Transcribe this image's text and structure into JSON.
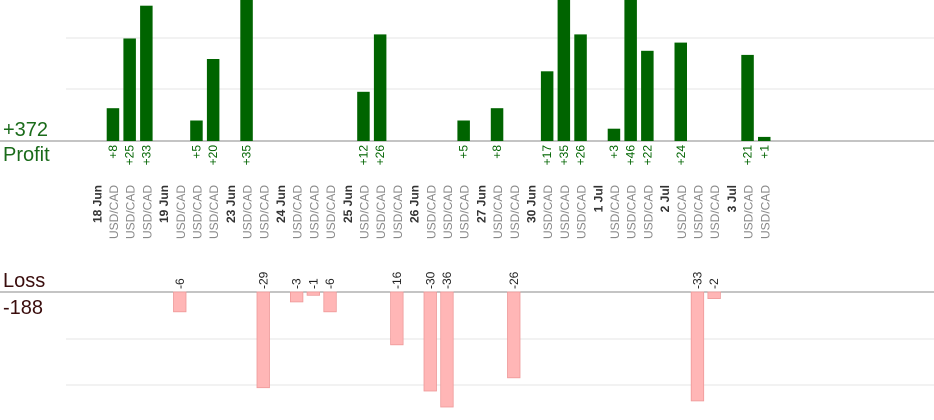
{
  "summary": {
    "profit_total": "+372",
    "profit_label": "Profit",
    "loss_label": "Loss",
    "loss_total": "-188"
  },
  "colors": {
    "profit_bar": "#006400",
    "loss_bar": "#ffb6b6",
    "grid": "#e6e6e6",
    "axis": "#888888",
    "date_text": "#333333",
    "symbol_text": "#888888"
  },
  "chart_data": {
    "type": "bar",
    "title": "",
    "dates": [
      {
        "label": "18 Jun",
        "trades": [
          {
            "symbol": "USD/CAD",
            "value": 8,
            "label": "+8"
          },
          {
            "symbol": "USD/CAD",
            "value": 25,
            "label": "+25"
          },
          {
            "symbol": "USD/CAD",
            "value": 33,
            "label": "+33"
          }
        ]
      },
      {
        "label": "19 Jun",
        "trades": [
          {
            "symbol": "USD/CAD",
            "value": -6,
            "label": "-6"
          },
          {
            "symbol": "USD/CAD",
            "value": 5,
            "label": "+5"
          },
          {
            "symbol": "USD/CAD",
            "value": 20,
            "label": "+20"
          }
        ]
      },
      {
        "label": "23 Jun",
        "trades": [
          {
            "symbol": "USD/CAD",
            "value": 35,
            "label": "+35"
          },
          {
            "symbol": "USD/CAD",
            "value": -29,
            "label": "-29"
          }
        ]
      },
      {
        "label": "24 Jun",
        "trades": [
          {
            "symbol": "USD/CAD",
            "value": -3,
            "label": "-3"
          },
          {
            "symbol": "USD/CAD",
            "value": -1,
            "label": "-1"
          },
          {
            "symbol": "USD/CAD",
            "value": -6,
            "label": "-6"
          }
        ]
      },
      {
        "label": "25 Jun",
        "trades": [
          {
            "symbol": "USD/CAD",
            "value": 12,
            "label": "+12"
          },
          {
            "symbol": "USD/CAD",
            "value": 26,
            "label": "+26"
          },
          {
            "symbol": "USD/CAD",
            "value": -16,
            "label": "-16"
          }
        ]
      },
      {
        "label": "26 Jun",
        "trades": [
          {
            "symbol": "USD/CAD",
            "value": -30,
            "label": "-30"
          },
          {
            "symbol": "USD/CAD",
            "value": -36,
            "label": "-36"
          },
          {
            "symbol": "USD/CAD",
            "value": 5,
            "label": "+5"
          }
        ]
      },
      {
        "label": "27 Jun",
        "trades": [
          {
            "symbol": "USD/CAD",
            "value": 8,
            "label": "+8"
          },
          {
            "symbol": "USD/CAD",
            "value": -26,
            "label": "-26"
          }
        ]
      },
      {
        "label": "30 Jun",
        "trades": [
          {
            "symbol": "USD/CAD",
            "value": 17,
            "label": "+17"
          },
          {
            "symbol": "USD/CAD",
            "value": 35,
            "label": "+35"
          },
          {
            "symbol": "USD/CAD",
            "value": 26,
            "label": "+26"
          }
        ]
      },
      {
        "label": "1 Jul",
        "trades": [
          {
            "symbol": "USD/CAD",
            "value": 3,
            "label": "+3"
          },
          {
            "symbol": "USD/CAD",
            "value": 46,
            "label": "+46"
          },
          {
            "symbol": "USD/CAD",
            "value": 22,
            "label": "+22"
          }
        ]
      },
      {
        "label": "2 Jul",
        "trades": [
          {
            "symbol": "USD/CAD",
            "value": 24,
            "label": "+24"
          },
          {
            "symbol": "USD/CAD",
            "value": -33,
            "label": "-33"
          },
          {
            "symbol": "USD/CAD",
            "value": -2,
            "label": "-2"
          }
        ]
      },
      {
        "label": "3 Jul",
        "trades": [
          {
            "symbol": "USD/CAD",
            "value": 21,
            "label": "+21"
          },
          {
            "symbol": "USD/CAD",
            "value": 1,
            "label": "+1"
          }
        ]
      }
    ],
    "grid": true
  }
}
